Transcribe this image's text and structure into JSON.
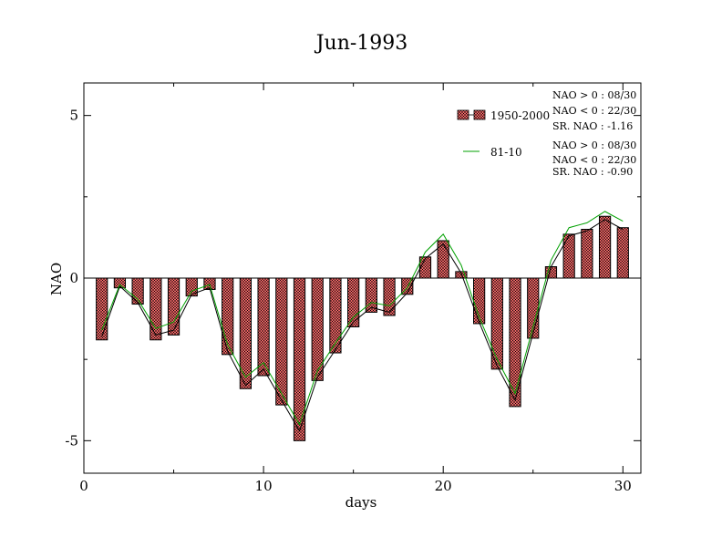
{
  "chart_data": {
    "type": "bar",
    "title": "Jun-1993",
    "xlabel": "days",
    "ylabel": "NAO",
    "xlim": [
      0,
      31
    ],
    "ylim": [
      -6,
      6
    ],
    "xticks": [
      0,
      10,
      20,
      30
    ],
    "yticks": [
      -5,
      0,
      5
    ],
    "x": [
      1,
      2,
      3,
      4,
      5,
      6,
      7,
      8,
      9,
      10,
      11,
      12,
      13,
      14,
      15,
      16,
      17,
      18,
      19,
      20,
      21,
      22,
      23,
      24,
      25,
      26,
      27,
      28,
      29,
      30
    ],
    "series": [
      {
        "name": "1950-2000",
        "kind": "bar",
        "fill": "#f06666",
        "values": [
          -1.9,
          -0.3,
          -0.8,
          -1.9,
          -1.75,
          -0.55,
          -0.35,
          -2.35,
          -3.4,
          -3.0,
          -3.9,
          -5.0,
          -3.15,
          -2.3,
          -1.5,
          -1.05,
          -1.15,
          -0.5,
          0.65,
          1.15,
          0.2,
          -1.4,
          -2.8,
          -3.95,
          -1.85,
          0.35,
          1.35,
          1.5,
          1.9,
          1.55
        ]
      },
      {
        "name": "",
        "kind": "line",
        "color": "#000000",
        "values": [
          -1.8,
          -0.25,
          -0.75,
          -1.75,
          -1.6,
          -0.5,
          -0.3,
          -2.25,
          -3.3,
          -2.8,
          -3.75,
          -4.7,
          -3.05,
          -2.2,
          -1.35,
          -0.9,
          -1.05,
          -0.45,
          0.6,
          1.05,
          0.15,
          -1.35,
          -2.7,
          -3.75,
          -1.7,
          0.35,
          1.3,
          1.45,
          1.8,
          1.5
        ]
      },
      {
        "name": "81-10",
        "kind": "line",
        "color": "#00a000",
        "values": [
          -1.6,
          -0.2,
          -0.65,
          -1.55,
          -1.35,
          -0.4,
          -0.2,
          -2.05,
          -3.05,
          -2.6,
          -3.55,
          -4.5,
          -2.85,
          -2.0,
          -1.2,
          -0.75,
          -0.85,
          -0.3,
          0.8,
          1.35,
          0.4,
          -1.2,
          -2.5,
          -3.55,
          -1.5,
          0.55,
          1.55,
          1.7,
          2.05,
          1.75
        ]
      }
    ],
    "legend_position": "top-right",
    "stats": {
      "set1": [
        "NAO > 0 : 08/30",
        "NAO < 0 : 22/30",
        "SR. NAO : -1.16"
      ],
      "set2": [
        "NAO > 0 : 08/30",
        "NAO < 0 : 22/30",
        "SR. NAO : -0.90"
      ]
    }
  }
}
